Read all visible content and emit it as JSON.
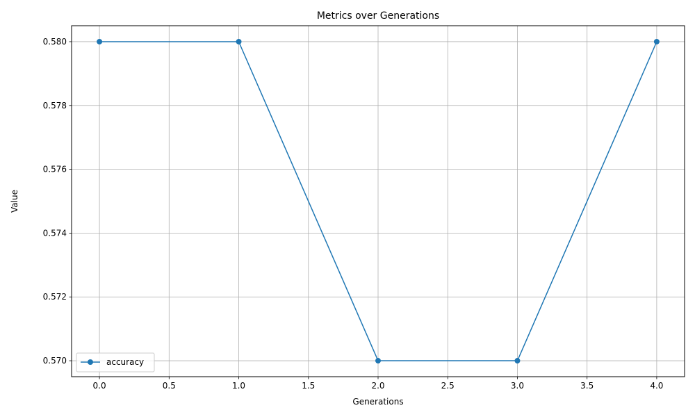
{
  "chart_data": {
    "type": "line",
    "title": "Metrics over Generations",
    "xlabel": "Generations",
    "ylabel": "Value",
    "xlim": [
      -0.2,
      4.2
    ],
    "ylim": [
      0.5695,
      0.5805
    ],
    "x_ticks": [
      0.0,
      0.5,
      1.0,
      1.5,
      2.0,
      2.5,
      3.0,
      3.5,
      4.0
    ],
    "x_tick_labels": [
      "0.0",
      "0.5",
      "1.0",
      "1.5",
      "2.0",
      "2.5",
      "3.0",
      "3.5",
      "4.0"
    ],
    "y_ticks": [
      0.57,
      0.572,
      0.574,
      0.576,
      0.578,
      0.58
    ],
    "y_tick_labels": [
      "0.570",
      "0.572",
      "0.574",
      "0.576",
      "0.578",
      "0.580"
    ],
    "grid": true,
    "legend_position": "lower-left",
    "series": [
      {
        "name": "accuracy",
        "color": "#1f77b4",
        "marker": "circle",
        "x": [
          0,
          1,
          2,
          3,
          4
        ],
        "y": [
          0.58,
          0.58,
          0.57,
          0.57,
          0.58
        ]
      }
    ]
  }
}
